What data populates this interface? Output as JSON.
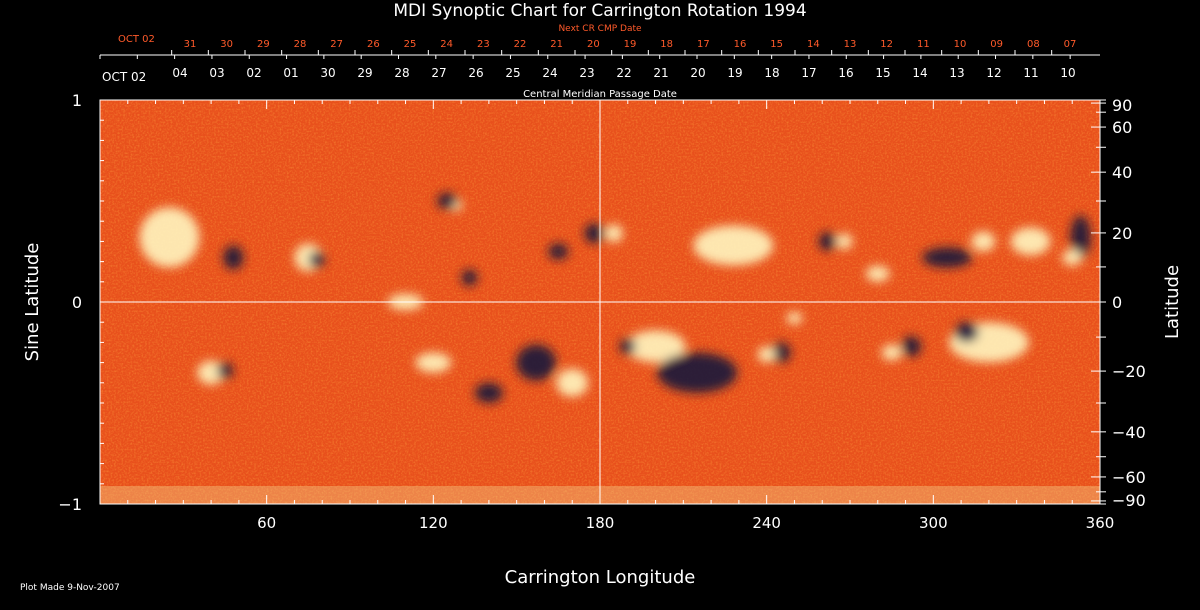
{
  "chart_data": {
    "type": "heatmap",
    "title": "MDI Synoptic Chart for Carrington Rotation 1994",
    "xlabel": "Carrington Longitude",
    "ylabel_left": "Sine Latitude",
    "ylabel_right": "Latitude",
    "xlim": [
      0,
      360
    ],
    "ylim": [
      -1,
      1
    ],
    "x_ticks": [
      60,
      120,
      180,
      240,
      300,
      360
    ],
    "y_left_ticks": [
      {
        "value": 1,
        "label": "1"
      },
      {
        "value": 0,
        "label": "0"
      },
      {
        "value": -1,
        "label": "−1"
      }
    ],
    "y_right_ticks": [
      {
        "value": 90,
        "label": "90"
      },
      {
        "value": 60,
        "label": "60"
      },
      {
        "value": 40,
        "label": "40"
      },
      {
        "value": 20,
        "label": "20"
      },
      {
        "value": 0,
        "label": "0"
      },
      {
        "value": -20,
        "label": "−20"
      },
      {
        "value": -40,
        "label": "−40"
      },
      {
        "value": -60,
        "label": "−60"
      },
      {
        "value": -90,
        "label": "−90"
      }
    ],
    "top_axis_label": "Central Meridian Passage Date",
    "top_axis_first_label": "OCT 02",
    "top_axis_dates": [
      "04",
      "03",
      "02",
      "01",
      "30",
      "29",
      "28",
      "27",
      "26",
      "25",
      "24",
      "23",
      "22",
      "21",
      "20",
      "19",
      "18",
      "17",
      "16",
      "15",
      "14",
      "13",
      "12",
      "11",
      "10"
    ],
    "next_cr_label": "Next CR CMP Date",
    "next_cr_first_label": "OCT 02",
    "next_cr_dates": [
      "31",
      "30",
      "29",
      "28",
      "27",
      "26",
      "25",
      "24",
      "23",
      "22",
      "21",
      "20",
      "19",
      "18",
      "17",
      "16",
      "15",
      "14",
      "13",
      "12",
      "11",
      "10",
      "09",
      "08",
      "07"
    ],
    "colors": {
      "background": "#e8501c",
      "positive": "#fff6c0",
      "negative": "#14143c",
      "accent": "#ff5a2a"
    }
  },
  "footer": {
    "plot_made": "Plot Made  9-Nov-2007"
  }
}
